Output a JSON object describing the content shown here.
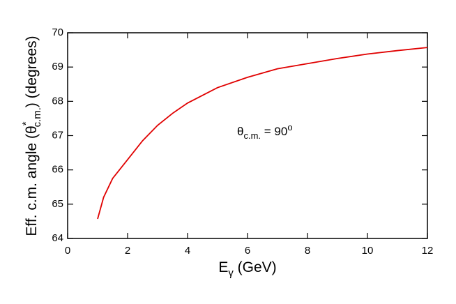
{
  "chart_data": {
    "type": "line",
    "x_label": [
      "E",
      "γ",
      " (GeV)"
    ],
    "y_label": [
      "Eff. c.m. angle (θ",
      "*",
      "c.m.",
      ") (degrees)"
    ],
    "annotation": [
      "θ",
      "c.m.",
      " = 90",
      "o"
    ],
    "x": [
      1,
      1.2,
      1.5,
      2,
      2.5,
      3,
      3.5,
      4,
      5,
      6,
      7,
      8,
      9,
      10,
      11,
      12
    ],
    "series": [
      {
        "color": "#e00000",
        "values": [
          64.57,
          65.2,
          65.75,
          66.3,
          66.85,
          67.3,
          67.65,
          67.95,
          68.4,
          68.7,
          68.95,
          69.1,
          69.25,
          69.38,
          69.48,
          69.57
        ]
      }
    ],
    "xlim": [
      0,
      12
    ],
    "xticks": [
      0,
      2,
      4,
      6,
      8,
      10,
      12
    ],
    "ylim": [
      64,
      70
    ],
    "yticks": [
      64,
      65,
      66,
      67,
      68,
      69,
      70
    ]
  }
}
